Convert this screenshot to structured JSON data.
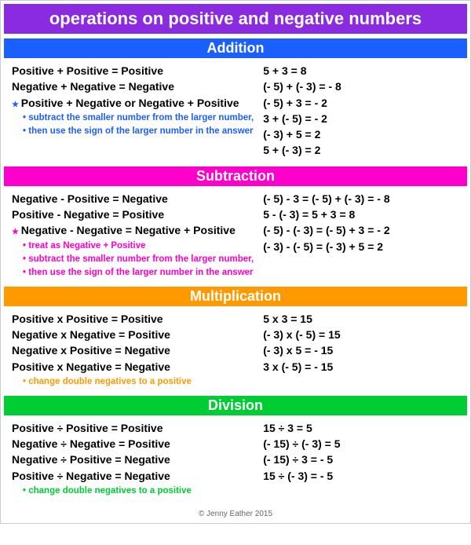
{
  "title": "operations on positive and negative numbers",
  "title_bg": "#8a2be2",
  "footer": "© Jenny Eather 2015",
  "sections": [
    {
      "name": "Addition",
      "header_bg": "#1a5fff",
      "star_color": "#1a5fff",
      "note_color": "#1a5fff",
      "rules": [
        {
          "text": "Positive + Positive = Positive",
          "star": false
        },
        {
          "text": "Negative + Negative = Negative",
          "star": false
        },
        {
          "text": "Positive + Negative or Negative + Positive",
          "star": true
        }
      ],
      "notes": [
        "subtract the smaller number from the larger number,",
        "then use the sign of the larger number in the answer"
      ],
      "examples": [
        "5 + 3 = 8",
        "(- 5) + (- 3) = - 8",
        "(- 5) + 3 = - 2",
        "3 + (- 5) = - 2",
        "(- 3) + 5 = 2",
        "5 + (- 3) = 2"
      ]
    },
    {
      "name": "Subtraction",
      "header_bg": "#ff00cc",
      "star_color": "#ff00cc",
      "note_color": "#ff00cc",
      "rules": [
        {
          "text": "Negative - Positive = Negative",
          "star": false
        },
        {
          "text": "Positive - Negative = Positive",
          "star": false
        },
        {
          "text": "Negative - Negative = Negative + Positive",
          "star": true
        }
      ],
      "notes": [
        "treat as Negative + Positive",
        "subtract the smaller number from the larger number,",
        "then use the sign of the larger number in the answer"
      ],
      "examples": [
        "(- 5) - 3 = (- 5) + (- 3) = - 8",
        "5 - (- 3) = 5 + 3 = 8",
        "(- 5) - (- 3) = (- 5) + 3 = - 2",
        "(- 3) - (- 5) = (- 3) + 5 = 2"
      ]
    },
    {
      "name": "Multiplication",
      "header_bg": "#ff9900",
      "star_color": "#ff9900",
      "note_color": "#ff9900",
      "rules": [
        {
          "text": "Positive x Positive = Positive",
          "star": false
        },
        {
          "text": "Negative x Negative = Positive",
          "star": false
        },
        {
          "text": "Negative x Positive = Negative",
          "star": false
        },
        {
          "text": "Positive x Negative = Negative",
          "star": false
        }
      ],
      "notes": [
        "change double negatives to a positive"
      ],
      "examples": [
        "5 x 3 = 15",
        "(- 3) x (- 5) = 15",
        "(- 3) x 5 = - 15",
        "3 x (- 5) = - 15"
      ]
    },
    {
      "name": "Division",
      "header_bg": "#00cc33",
      "star_color": "#00cc33",
      "note_color": "#00cc33",
      "rules": [
        {
          "text": "Positive ÷ Positive = Positive",
          "star": false
        },
        {
          "text": "Negative ÷ Negative = Positive",
          "star": false
        },
        {
          "text": "Negative ÷ Positive = Negative",
          "star": false
        },
        {
          "text": "Positive ÷ Negative = Negative",
          "star": false
        }
      ],
      "notes": [
        "change double negatives to a positive"
      ],
      "examples": [
        "15 ÷ 3 = 5",
        "(- 15) ÷ (- 3) = 5",
        "(- 15) ÷ 3 = - 5",
        "15 ÷ (- 3) = - 5"
      ]
    }
  ]
}
